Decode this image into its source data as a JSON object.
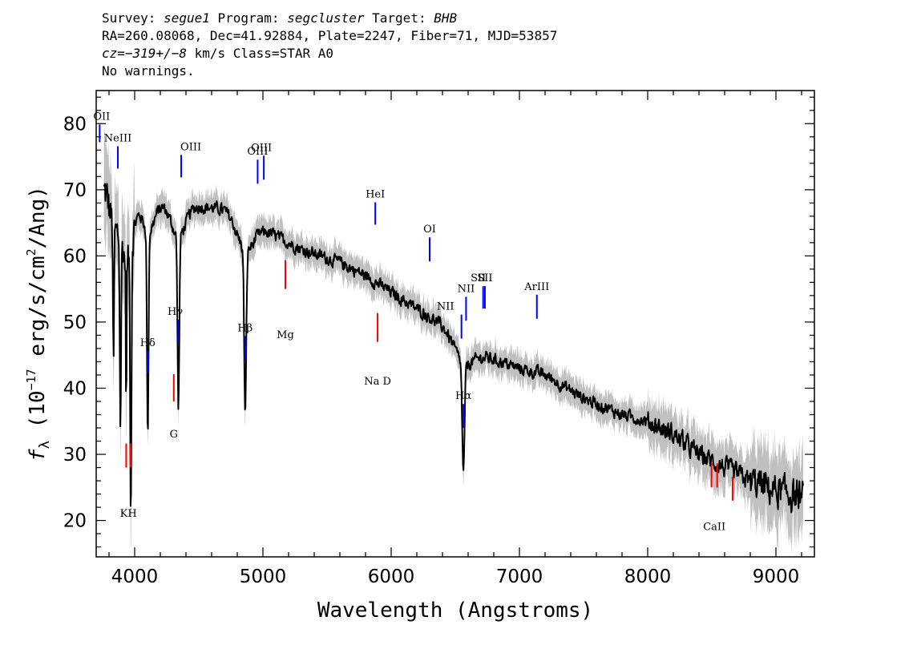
{
  "header": {
    "survey_label": "Survey: ",
    "survey_value": "segue1",
    "program_label": " Program: ",
    "program_value": "segcluster",
    "target_label": " Target: ",
    "target_value": "BHB",
    "line2": "RA=260.08068, Dec=41.92884, Plate=2247, Fiber=71, MJD=53857",
    "cz_label": "cz=",
    "cz_value": "−319+/−8",
    "cz_unit": " km/s Class=STAR A0",
    "line4": "No warnings."
  },
  "chart_data": {
    "type": "line",
    "xlabel": "Wavelength (Angstroms)",
    "ylabel": "fλ (10⁻¹⁷ erg/s/cm²/Ang)",
    "xlim": [
      3700,
      9300
    ],
    "ylim": [
      14.5,
      85
    ],
    "x_ticks": [
      4000,
      5000,
      6000,
      7000,
      8000,
      9000
    ],
    "y_ticks": [
      20,
      30,
      40,
      50,
      60,
      70,
      80
    ],
    "grid": false,
    "colors": {
      "spectrum": "#000000",
      "error_band": "#c0c0c0",
      "emission": "#0000ff",
      "absorption": "#ff0000"
    },
    "continuum": [
      [
        3800,
        70
      ],
      [
        4000,
        70.5
      ],
      [
        4200,
        68
      ],
      [
        4500,
        67.5
      ],
      [
        4700,
        67
      ],
      [
        4900,
        65
      ],
      [
        5000,
        64
      ],
      [
        5300,
        61
      ],
      [
        5600,
        59
      ],
      [
        5800,
        57
      ],
      [
        6000,
        54.5
      ],
      [
        6200,
        52
      ],
      [
        6400,
        49.5
      ],
      [
        6550,
        47
      ],
      [
        6700,
        45
      ],
      [
        7000,
        43
      ],
      [
        7200,
        42
      ],
      [
        7500,
        38.5
      ],
      [
        7800,
        36
      ],
      [
        8000,
        35
      ],
      [
        8200,
        33
      ],
      [
        8400,
        30
      ],
      [
        8600,
        28
      ],
      [
        8800,
        26
      ],
      [
        9000,
        24.5
      ],
      [
        9200,
        23.5
      ]
    ],
    "absorption_features": [
      {
        "wave": 3835,
        "depth": 22,
        "width": 4
      },
      {
        "wave": 3889,
        "depth": 28,
        "width": 5
      },
      {
        "wave": 3934,
        "depth": 22,
        "width": 3
      },
      {
        "wave": 3970,
        "depth": 39,
        "width": 5
      },
      {
        "wave": 4102,
        "depth": 31,
        "width": 6
      },
      {
        "wave": 4341,
        "depth": 26,
        "width": 7
      },
      {
        "wave": 4862,
        "depth": 25,
        "width": 8
      },
      {
        "wave": 6563,
        "depth": 17,
        "width": 9
      }
    ],
    "emission_lines": [
      {
        "name": "OII",
        "wave": 3727
      },
      {
        "name": "NeIII",
        "wave": 3869
      },
      {
        "name": "Hδ",
        "wave": 4102
      },
      {
        "name": "Hγ",
        "wave": 4341
      },
      {
        "name": "OIII",
        "wave": 4363
      },
      {
        "name": "Hβ",
        "wave": 4861
      },
      {
        "name": "OIII",
        "wave": 4959
      },
      {
        "name": "OIII",
        "wave": 5007
      },
      {
        "name": "HeI",
        "wave": 5876
      },
      {
        "name": "OI",
        "wave": 6300
      },
      {
        "name": "NII",
        "wave": 6548
      },
      {
        "name": "Hα",
        "wave": 6563
      },
      {
        "name": "NII",
        "wave": 6584
      },
      {
        "name": "SII",
        "wave": 6717
      },
      {
        "name": "SII",
        "wave": 6731
      },
      {
        "name": "ArIII",
        "wave": 7136
      }
    ],
    "absorption_lines": [
      {
        "name": "K",
        "wave": 3934
      },
      {
        "name": "H",
        "wave": 3969
      },
      {
        "name": "G",
        "wave": 4305
      },
      {
        "name": "Mg",
        "wave": 5175
      },
      {
        "name": "Na D",
        "wave": 5894
      },
      {
        "name": "CaII",
        "wave": 8498
      },
      {
        "name": "CaII",
        "wave": 8542
      },
      {
        "name": "CaII",
        "wave": 8662
      }
    ]
  }
}
